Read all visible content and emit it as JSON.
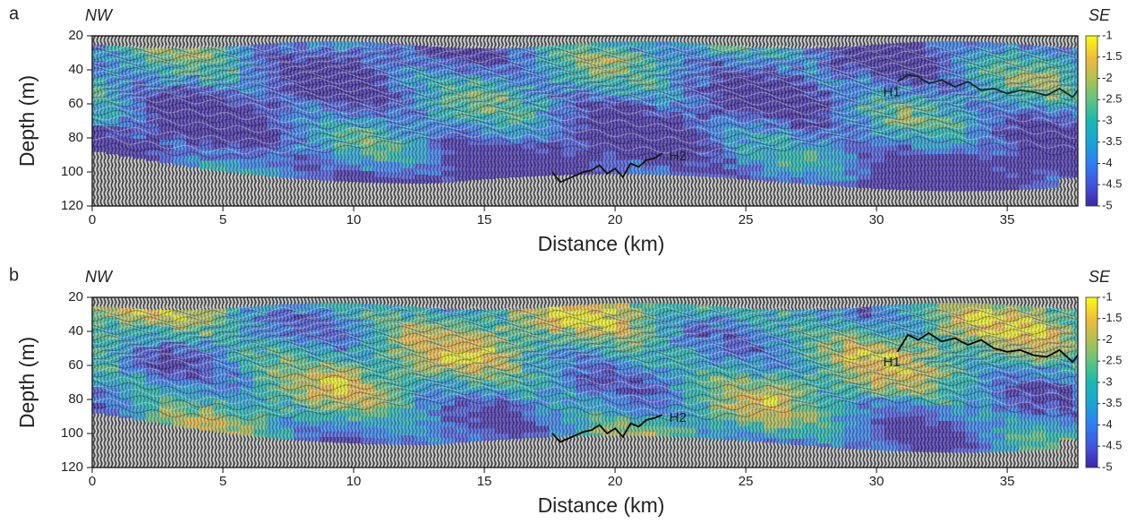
{
  "chart_data": [
    {
      "type": "image",
      "panel_label": "a",
      "left_label": "NW",
      "right_label": "SE",
      "xlabel": "Distance (km)",
      "ylabel": "Depth (m)",
      "xlim": [
        0,
        37.7
      ],
      "ylim": [
        20,
        120
      ],
      "y_inverted": true,
      "xticks": [
        0,
        5,
        10,
        15,
        20,
        25,
        30,
        35
      ],
      "yticks": [
        20,
        40,
        60,
        80,
        100,
        120
      ],
      "colorbar": {
        "lim": [
          -5,
          -1
        ],
        "ticks": [
          -1,
          -1.5,
          -2,
          -2.5,
          -3,
          -3.5,
          -4,
          -4.5,
          -5
        ]
      },
      "horizons": [
        {
          "name": "H1",
          "color": "#0a2a2a",
          "x": [
            30.8,
            31.2,
            31.6,
            32,
            32.5,
            33,
            33.5,
            34,
            34.5,
            35,
            35.5,
            36,
            36.5,
            37,
            37.5,
            37.7
          ],
          "y": [
            47,
            43,
            44,
            48,
            46,
            50,
            47,
            52,
            51,
            54,
            52,
            53,
            55,
            51,
            56,
            52
          ]
        },
        {
          "name": "H2",
          "color": "#111111",
          "x": [
            17.6,
            17.9,
            18.2,
            18.5,
            18.8,
            19.1,
            19.4,
            19.7,
            20,
            20.3,
            20.6,
            20.9,
            21.2,
            21.5,
            21.8
          ],
          "y": [
            100,
            106,
            104,
            102,
            100,
            99,
            96,
            101,
            98,
            103,
            95,
            97,
            93,
            92,
            89
          ]
        }
      ]
    },
    {
      "type": "image",
      "panel_label": "b",
      "left_label": "NW",
      "right_label": "SE",
      "xlabel": "Distance (km)",
      "ylabel": "Depth (m)",
      "xlim": [
        0,
        37.7
      ],
      "ylim": [
        20,
        120
      ],
      "y_inverted": true,
      "xticks": [
        0,
        5,
        10,
        15,
        20,
        25,
        30,
        35
      ],
      "yticks": [
        20,
        40,
        60,
        80,
        100,
        120
      ],
      "colorbar": {
        "lim": [
          -5,
          -1
        ],
        "ticks": [
          -1,
          -1.5,
          -2,
          -2.5,
          -3,
          -3.5,
          -4,
          -4.5,
          -5
        ]
      },
      "horizons": [
        {
          "name": "H1",
          "color": "#000000",
          "x": [
            30.8,
            31.2,
            31.6,
            32,
            32.5,
            33,
            33.5,
            34,
            34.5,
            35,
            35.5,
            36,
            36.5,
            37,
            37.5,
            37.7
          ],
          "y": [
            52,
            42,
            45,
            41,
            46,
            44,
            48,
            45,
            50,
            52,
            51,
            54,
            55,
            51,
            58,
            54
          ]
        },
        {
          "name": "H2",
          "color": "#000000",
          "x": [
            17.6,
            17.9,
            18.2,
            18.5,
            18.8,
            19.1,
            19.4,
            19.7,
            20,
            20.3,
            20.6,
            20.9,
            21.2,
            21.5,
            21.8
          ],
          "y": [
            100,
            105,
            103,
            101,
            99,
            98,
            95,
            100,
            97,
            102,
            94,
            96,
            92,
            91,
            89
          ]
        }
      ]
    }
  ]
}
